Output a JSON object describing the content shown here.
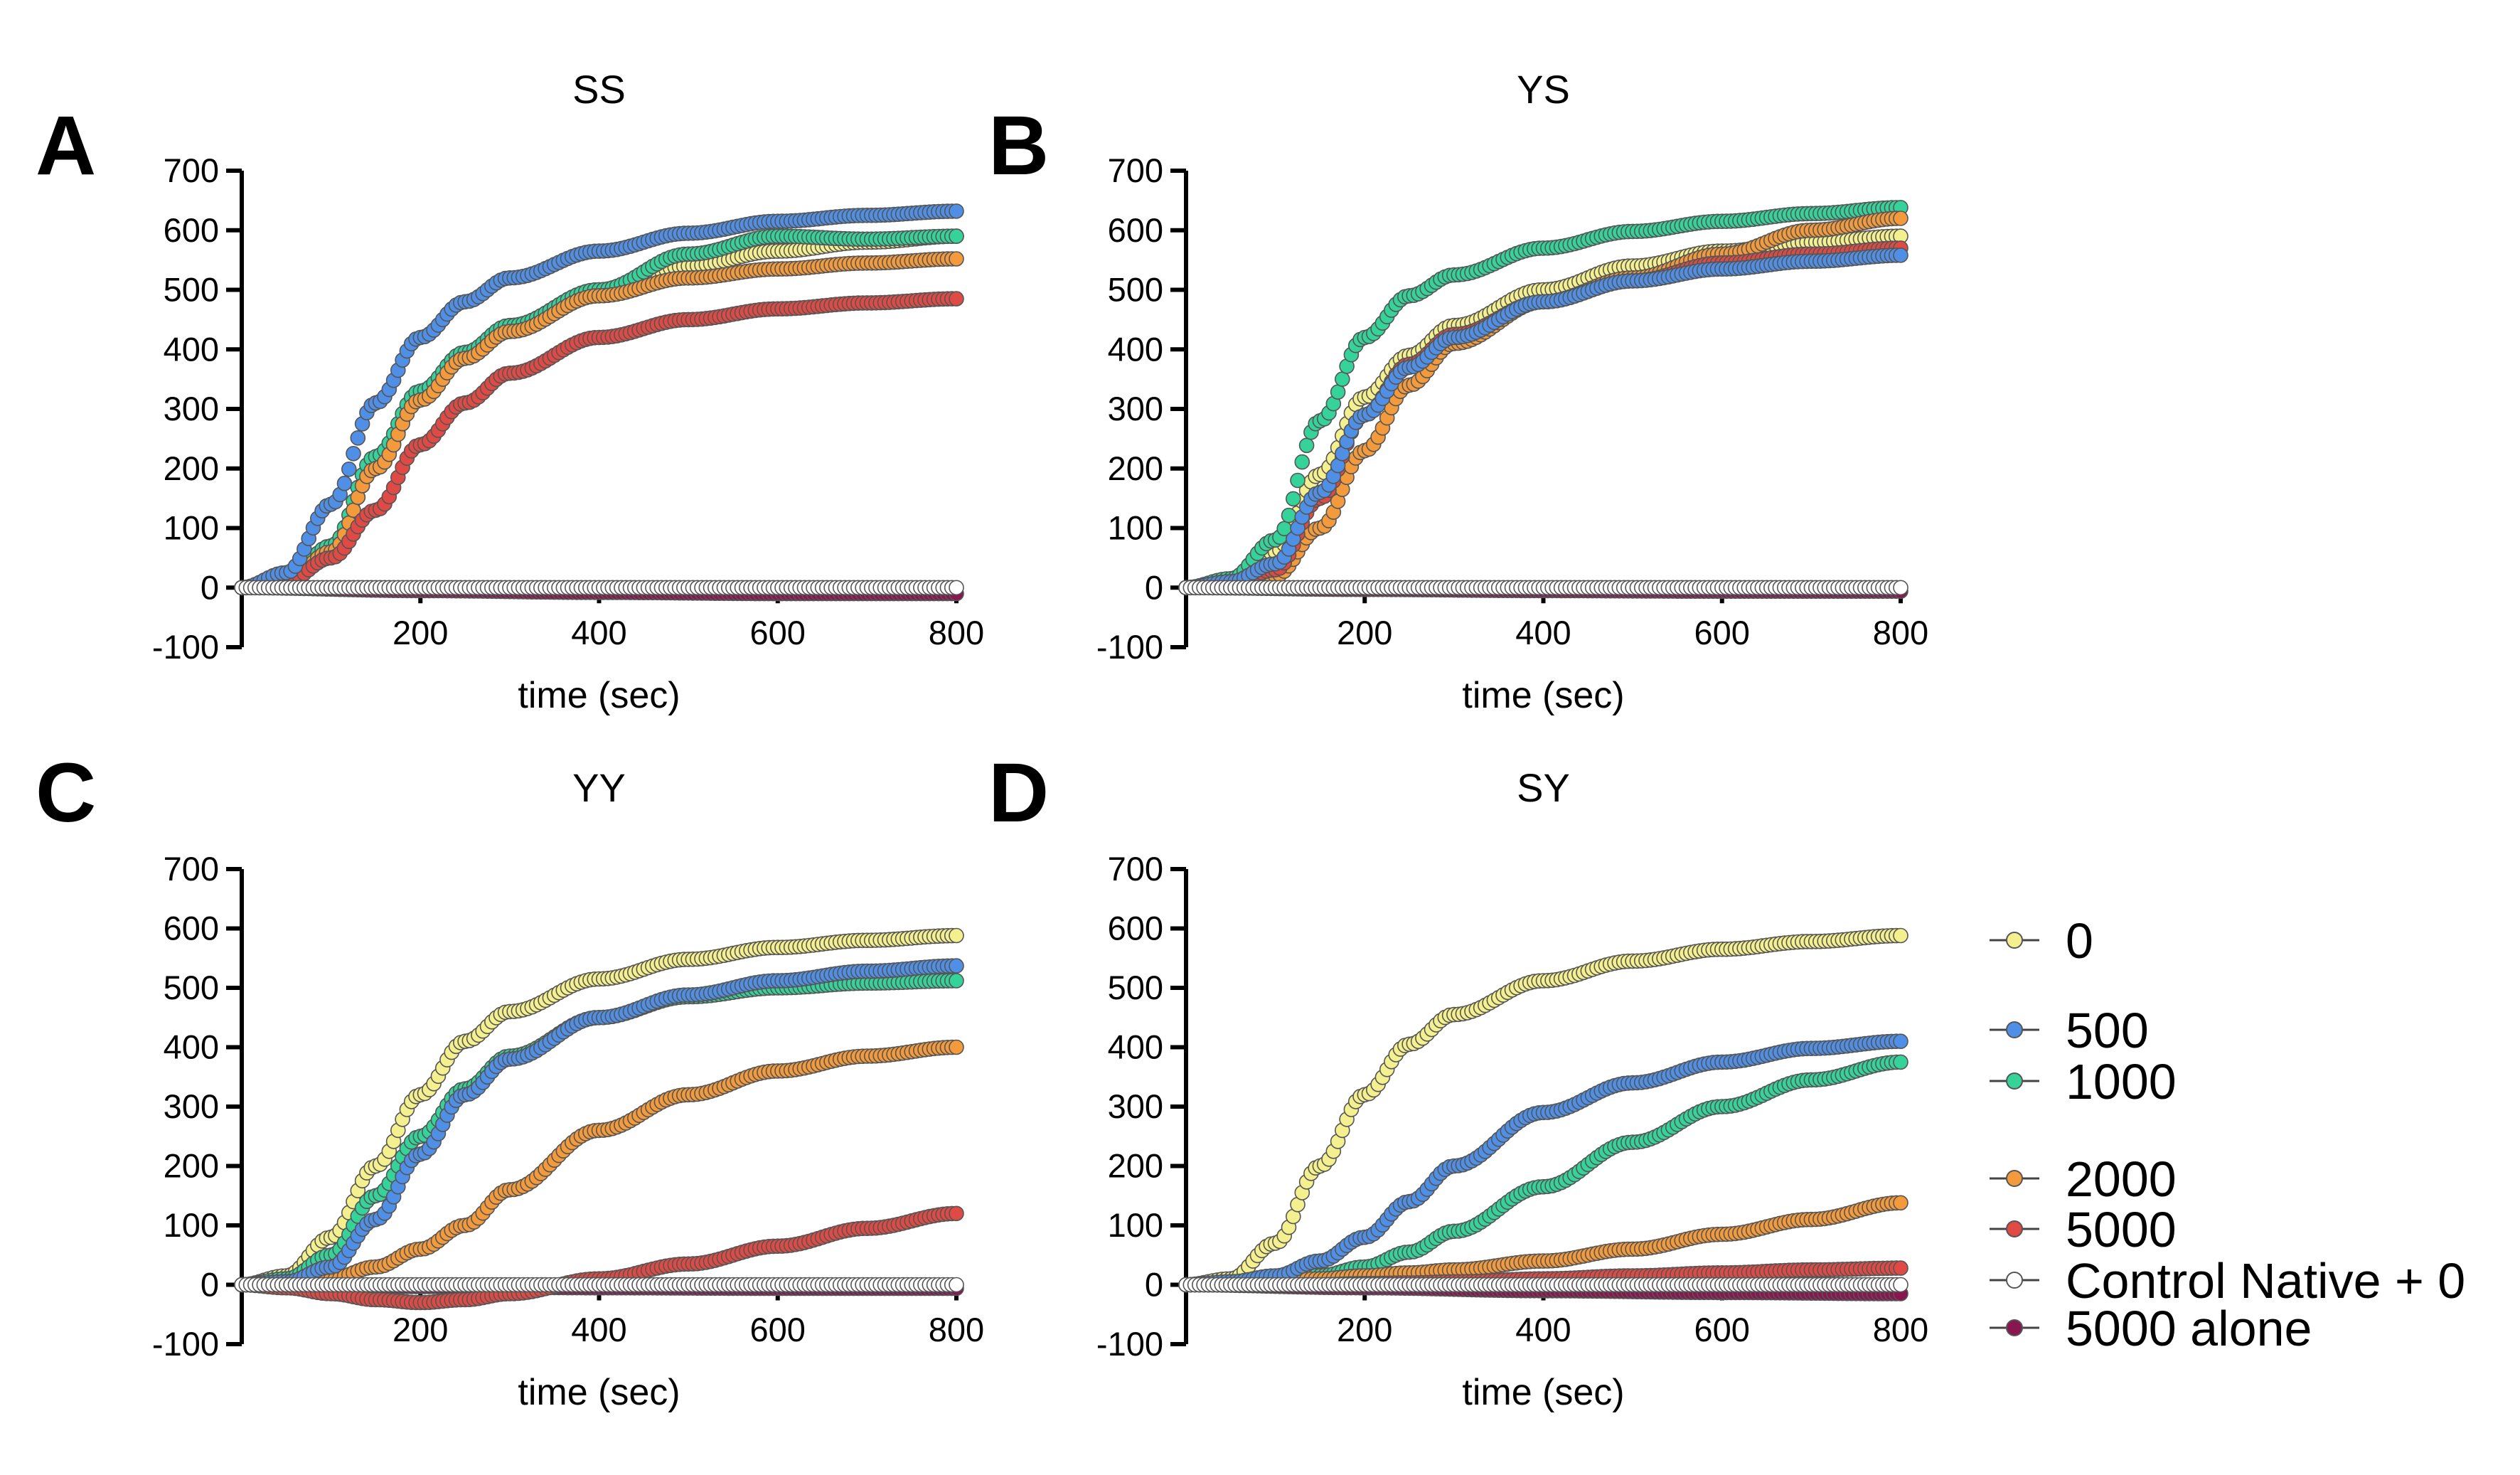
{
  "legend": {
    "entries": [
      {
        "label": "0",
        "color": "#f5f08f"
      },
      {
        "label": "500",
        "color": "#4f8fe6"
      },
      {
        "label": "1000",
        "color": "#35d39a"
      },
      {
        "label": "2000",
        "color": "#f39a3c"
      },
      {
        "label": "5000",
        "color": "#e04a45"
      },
      {
        "label": "Control Native + 0",
        "color": "#ffffff"
      },
      {
        "label": "5000 alone",
        "color": "#8a1650"
      }
    ]
  },
  "chart_data": [
    {
      "type": "scatter",
      "panel": "A",
      "title": "SS",
      "xlabel": "time (sec)",
      "ylabel": "",
      "xlim": [
        0,
        800
      ],
      "ylim": [
        -100,
        700
      ],
      "xticks": [
        200,
        400,
        600,
        800
      ],
      "yticks": [
        -100,
        0,
        100,
        200,
        300,
        400,
        500,
        600,
        700
      ],
      "grid": false,
      "series": [
        {
          "name": "0",
          "color": "#f5f08f",
          "x": [
            0,
            50,
            100,
            150,
            200,
            250,
            300,
            400,
            500,
            600,
            700,
            800
          ],
          "y": [
            0,
            10,
            60,
            200,
            320,
            390,
            440,
            500,
            540,
            565,
            580,
            590
          ]
        },
        {
          "name": "500",
          "color": "#4f8fe6",
          "x": [
            0,
            50,
            100,
            150,
            200,
            250,
            300,
            400,
            500,
            600,
            700,
            800
          ],
          "y": [
            0,
            25,
            140,
            310,
            420,
            480,
            520,
            565,
            595,
            615,
            625,
            632
          ]
        },
        {
          "name": "1000",
          "color": "#35d39a",
          "x": [
            0,
            50,
            100,
            150,
            200,
            250,
            300,
            400,
            500,
            600,
            700,
            800
          ],
          "y": [
            0,
            10,
            70,
            220,
            330,
            395,
            440,
            500,
            560,
            590,
            585,
            590
          ]
        },
        {
          "name": "2000",
          "color": "#f39a3c",
          "x": [
            0,
            50,
            100,
            150,
            200,
            250,
            300,
            400,
            500,
            600,
            700,
            800
          ],
          "y": [
            0,
            10,
            60,
            200,
            315,
            385,
            430,
            490,
            520,
            535,
            545,
            552
          ]
        },
        {
          "name": "5000",
          "color": "#e04a45",
          "x": [
            0,
            50,
            100,
            150,
            200,
            250,
            300,
            400,
            500,
            600,
            700,
            800
          ],
          "y": [
            0,
            10,
            50,
            130,
            240,
            310,
            360,
            420,
            450,
            468,
            478,
            485
          ]
        },
        {
          "name": "Control Native + 0",
          "color": "#ffffff",
          "x": [
            0,
            200,
            400,
            600,
            800
          ],
          "y": [
            0,
            0,
            0,
            0,
            0
          ]
        },
        {
          "name": "5000 alone",
          "color": "#8a1650",
          "x": [
            0,
            200,
            400,
            600,
            800
          ],
          "y": [
            0,
            -5,
            -8,
            -10,
            -10
          ]
        }
      ]
    },
    {
      "type": "scatter",
      "panel": "B",
      "title": "YS",
      "xlabel": "time (sec)",
      "ylabel": "",
      "xlim": [
        0,
        800
      ],
      "ylim": [
        -100,
        700
      ],
      "xticks": [
        200,
        400,
        600,
        800
      ],
      "yticks": [
        -100,
        0,
        100,
        200,
        300,
        400,
        500,
        600,
        700
      ],
      "grid": false,
      "series": [
        {
          "name": "0",
          "color": "#f5f08f",
          "x": [
            0,
            50,
            100,
            150,
            200,
            250,
            300,
            400,
            500,
            600,
            700,
            800
          ],
          "y": [
            0,
            10,
            60,
            190,
            320,
            390,
            440,
            500,
            540,
            565,
            580,
            590
          ]
        },
        {
          "name": "500",
          "color": "#4f8fe6",
          "x": [
            0,
            50,
            100,
            150,
            200,
            250,
            300,
            400,
            500,
            600,
            700,
            800
          ],
          "y": [
            0,
            10,
            40,
            160,
            290,
            370,
            420,
            480,
            515,
            535,
            548,
            558
          ]
        },
        {
          "name": "1000",
          "color": "#35d39a",
          "x": [
            0,
            50,
            100,
            150,
            200,
            250,
            300,
            400,
            500,
            600,
            700,
            800
          ],
          "y": [
            0,
            15,
            80,
            280,
            420,
            490,
            525,
            570,
            598,
            615,
            628,
            638
          ]
        },
        {
          "name": "2000",
          "color": "#f39a3c",
          "x": [
            0,
            50,
            100,
            150,
            200,
            250,
            300,
            400,
            500,
            600,
            700,
            800
          ],
          "y": [
            0,
            5,
            20,
            100,
            230,
            340,
            410,
            480,
            520,
            560,
            600,
            620
          ]
        },
        {
          "name": "5000",
          "color": "#e04a45",
          "x": [
            0,
            50,
            100,
            150,
            200,
            250,
            300,
            400,
            500,
            600,
            700,
            800
          ],
          "y": [
            0,
            5,
            30,
            150,
            290,
            375,
            425,
            480,
            515,
            545,
            560,
            570
          ]
        },
        {
          "name": "Control Native + 0",
          "color": "#ffffff",
          "x": [
            0,
            200,
            400,
            600,
            800
          ],
          "y": [
            0,
            0,
            0,
            0,
            0
          ]
        },
        {
          "name": "5000 alone",
          "color": "#8a1650",
          "x": [
            0,
            200,
            400,
            600,
            800
          ],
          "y": [
            0,
            -3,
            -5,
            -6,
            -6
          ]
        }
      ]
    },
    {
      "type": "scatter",
      "panel": "C",
      "title": "YY",
      "xlabel": "time (sec)",
      "ylabel": "",
      "xlim": [
        0,
        800
      ],
      "ylim": [
        -100,
        700
      ],
      "xticks": [
        200,
        400,
        600,
        800
      ],
      "yticks": [
        -100,
        0,
        100,
        200,
        300,
        400,
        500,
        600,
        700
      ],
      "grid": false,
      "series": [
        {
          "name": "0",
          "color": "#f5f08f",
          "x": [
            0,
            50,
            100,
            150,
            200,
            250,
            300,
            400,
            500,
            600,
            700,
            800
          ],
          "y": [
            0,
            15,
            80,
            200,
            320,
            410,
            460,
            515,
            548,
            568,
            580,
            588
          ]
        },
        {
          "name": "500",
          "color": "#4f8fe6",
          "x": [
            0,
            50,
            100,
            150,
            200,
            250,
            300,
            400,
            500,
            600,
            700,
            800
          ],
          "y": [
            0,
            5,
            30,
            110,
            220,
            320,
            380,
            450,
            488,
            512,
            528,
            537
          ]
        },
        {
          "name": "1000",
          "color": "#35d39a",
          "x": [
            0,
            50,
            100,
            150,
            200,
            250,
            300,
            400,
            500,
            600,
            700,
            800
          ],
          "y": [
            0,
            10,
            50,
            150,
            250,
            330,
            385,
            450,
            485,
            500,
            508,
            512
          ]
        },
        {
          "name": "2000",
          "color": "#f39a3c",
          "x": [
            0,
            50,
            100,
            150,
            200,
            250,
            300,
            400,
            500,
            600,
            700,
            800
          ],
          "y": [
            0,
            5,
            10,
            30,
            60,
            100,
            160,
            260,
            320,
            360,
            385,
            400
          ]
        },
        {
          "name": "5000",
          "color": "#e04a45",
          "x": [
            0,
            50,
            100,
            150,
            200,
            250,
            300,
            400,
            500,
            600,
            700,
            800
          ],
          "y": [
            0,
            -5,
            -15,
            -25,
            -30,
            -25,
            -15,
            10,
            35,
            65,
            95,
            120
          ]
        },
        {
          "name": "Control Native + 0",
          "color": "#ffffff",
          "x": [
            0,
            200,
            400,
            600,
            800
          ],
          "y": [
            0,
            0,
            0,
            0,
            0
          ]
        },
        {
          "name": "5000 alone",
          "color": "#8a1650",
          "x": [
            0,
            200,
            400,
            600,
            800
          ],
          "y": [
            0,
            -3,
            -5,
            -6,
            -6
          ]
        }
      ]
    },
    {
      "type": "scatter",
      "panel": "D",
      "title": "SY",
      "xlabel": "time (sec)",
      "ylabel": "",
      "xlim": [
        0,
        800
      ],
      "ylim": [
        -100,
        700
      ],
      "xticks": [
        200,
        400,
        600,
        800
      ],
      "yticks": [
        -100,
        0,
        100,
        200,
        300,
        400,
        500,
        600,
        700
      ],
      "grid": false,
      "series": [
        {
          "name": "0",
          "color": "#f5f08f",
          "x": [
            0,
            50,
            100,
            150,
            200,
            250,
            300,
            400,
            500,
            600,
            700,
            800
          ],
          "y": [
            0,
            10,
            70,
            200,
            320,
            405,
            455,
            512,
            545,
            565,
            578,
            588
          ]
        },
        {
          "name": "500",
          "color": "#4f8fe6",
          "x": [
            0,
            50,
            100,
            150,
            200,
            250,
            300,
            400,
            500,
            600,
            700,
            800
          ],
          "y": [
            0,
            5,
            15,
            40,
            80,
            140,
            200,
            290,
            340,
            375,
            398,
            410
          ]
        },
        {
          "name": "1000",
          "color": "#35d39a",
          "x": [
            0,
            50,
            100,
            150,
            200,
            250,
            300,
            400,
            500,
            600,
            700,
            800
          ],
          "y": [
            0,
            3,
            8,
            15,
            30,
            55,
            90,
            165,
            240,
            300,
            345,
            375
          ]
        },
        {
          "name": "2000",
          "color": "#f39a3c",
          "x": [
            0,
            50,
            100,
            150,
            200,
            250,
            300,
            400,
            500,
            600,
            700,
            800
          ],
          "y": [
            0,
            2,
            5,
            10,
            15,
            20,
            25,
            40,
            60,
            85,
            110,
            138
          ]
        },
        {
          "name": "5000",
          "color": "#e04a45",
          "x": [
            0,
            50,
            100,
            150,
            200,
            250,
            300,
            400,
            500,
            600,
            700,
            800
          ],
          "y": [
            0,
            0,
            0,
            0,
            2,
            3,
            5,
            10,
            15,
            20,
            25,
            28
          ]
        },
        {
          "name": "Control Native + 0",
          "color": "#ffffff",
          "x": [
            0,
            200,
            400,
            600,
            800
          ],
          "y": [
            0,
            0,
            0,
            0,
            0
          ]
        },
        {
          "name": "5000 alone",
          "color": "#8a1650",
          "x": [
            0,
            200,
            400,
            600,
            800
          ],
          "y": [
            0,
            -5,
            -10,
            -13,
            -15
          ]
        }
      ]
    }
  ]
}
